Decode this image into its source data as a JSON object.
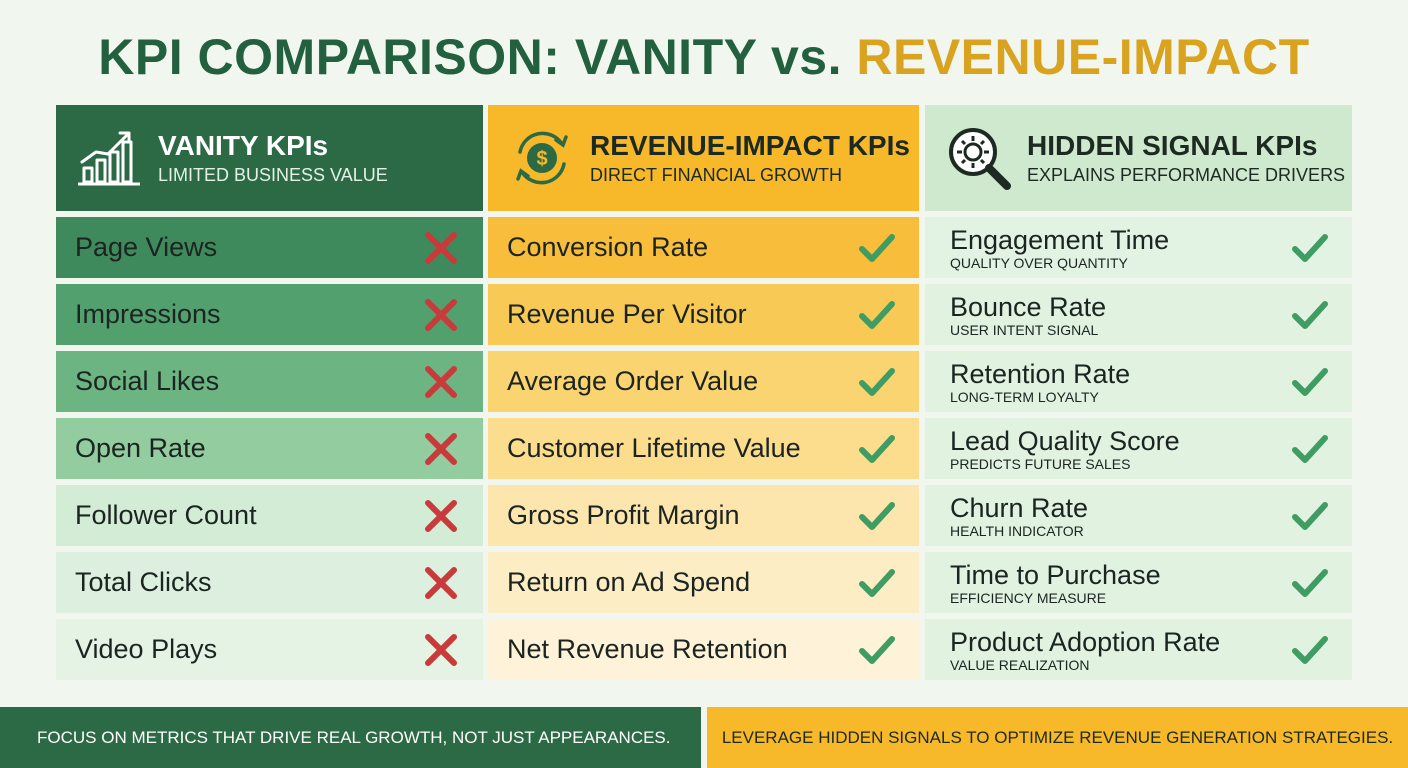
{
  "title": {
    "main": "KPI COMPARISON: VANITY vs.",
    "accent": "REVENUE-IMPACT"
  },
  "colors": {
    "dark_green": "#2c6a45",
    "gold": "#f7b82a",
    "light_green": "#cfe9cf",
    "cross_red": "#c93a3a",
    "check_green": "#3f9c63"
  },
  "columns": {
    "vanity": {
      "title": "VANITY KPIs",
      "subtitle": "LIMITED BUSINESS VALUE",
      "icon": "growth-chart-icon",
      "mark_icon": "cross-icon",
      "items": [
        {
          "label": "Page Views"
        },
        {
          "label": "Impressions"
        },
        {
          "label": "Social Likes"
        },
        {
          "label": "Open Rate"
        },
        {
          "label": "Follower Count"
        },
        {
          "label": "Total Clicks"
        },
        {
          "label": "Video Plays"
        }
      ]
    },
    "revenue": {
      "title": "REVENUE-IMPACT KPIs",
      "subtitle": "DIRECT FINANCIAL GROWTH",
      "icon": "dollar-cycle-icon",
      "mark_icon": "check-icon",
      "items": [
        {
          "label": "Conversion Rate"
        },
        {
          "label": "Revenue Per Visitor"
        },
        {
          "label": "Average Order Value"
        },
        {
          "label": "Customer Lifetime Value"
        },
        {
          "label": "Gross Profit Margin"
        },
        {
          "label": "Return on Ad Spend"
        },
        {
          "label": "Net Revenue Retention"
        }
      ]
    },
    "hidden": {
      "title": "HIDDEN SIGNAL KPIs",
      "subtitle": "EXPLAINS PERFORMANCE DRIVERS",
      "icon": "gear-magnifier-icon",
      "mark_icon": "check-icon",
      "items": [
        {
          "label": "Engagement Time",
          "sub": "QUALITY OVER QUANTITY"
        },
        {
          "label": "Bounce Rate",
          "sub": "USER INTENT SIGNAL"
        },
        {
          "label": "Retention Rate",
          "sub": "LONG-TERM LOYALTY"
        },
        {
          "label": "Lead Quality Score",
          "sub": "PREDICTS FUTURE SALES"
        },
        {
          "label": "Churn Rate",
          "sub": "HEALTH INDICATOR"
        },
        {
          "label": "Time to Purchase",
          "sub": "EFFICIENCY MEASURE"
        },
        {
          "label": "Product Adoption Rate",
          "sub": "VALUE REALIZATION"
        }
      ]
    }
  },
  "footer": {
    "left": "FOCUS ON METRICS THAT DRIVE REAL GROWTH, NOT JUST APPEARANCES.",
    "right": "LEVERAGE HIDDEN SIGNALS TO OPTIMIZE REVENUE GENERATION STRATEGIES."
  }
}
